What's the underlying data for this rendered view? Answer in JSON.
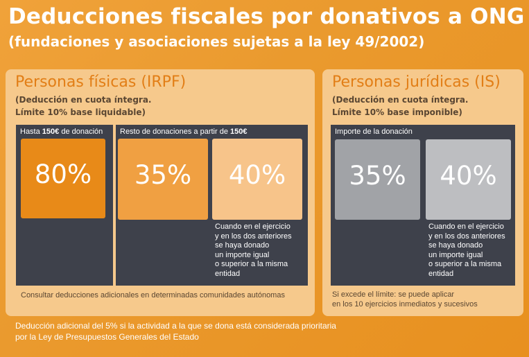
{
  "title": "Deducciones fiscales por donativos a ONG",
  "subtitle": "(fundaciones y asociaciones sujetas a la ley 49/2002)",
  "left_panel": {
    "heading": "Personas físicas (IRPF)",
    "note_line1": "(Deducción en cuota íntegra.",
    "note_line2": "Límite 10% base liquidable)",
    "col1_label_pre": "Hasta ",
    "col1_label_bold": "150€",
    "col1_label_post": " de donación",
    "col2_label_pre": "Resto de donaciones a partir de ",
    "col2_label_bold": "150€",
    "box1": "80%",
    "box2": "35%",
    "box3": "40%",
    "desc_lines": [
      "Cuando en el ejercicio",
      "y en los dos anteriores",
      "se haya donado",
      "un importe igual",
      "o superior a la misma",
      "entidad"
    ],
    "footer": "Consultar deducciones adicionales en determinadas comunidades autónomas"
  },
  "right_panel": {
    "heading": "Personas jurídicas (IS)",
    "note_line1": "(Deducción en cuota íntegra.",
    "note_line2": "Límite 10% base imponible)",
    "label": "Importe de la donación",
    "box1": "35%",
    "box2": "40%",
    "desc_lines": [
      "Cuando en el ejercicio",
      "y en los dos anteriores",
      "se haya donado",
      "un importe igual",
      "o superior a la misma",
      "entidad"
    ],
    "footer_line1": "Si excede el límite: se puede aplicar",
    "footer_line2": "en los 10 ejercicios inmediatos y sucesivos"
  },
  "bottom_note_line1": "Deducción adicional del 5% si la actividad a la que se dona está considerada prioritaria",
  "bottom_note_line2": "por la Ley de Presupuestos Generales del Estado"
}
